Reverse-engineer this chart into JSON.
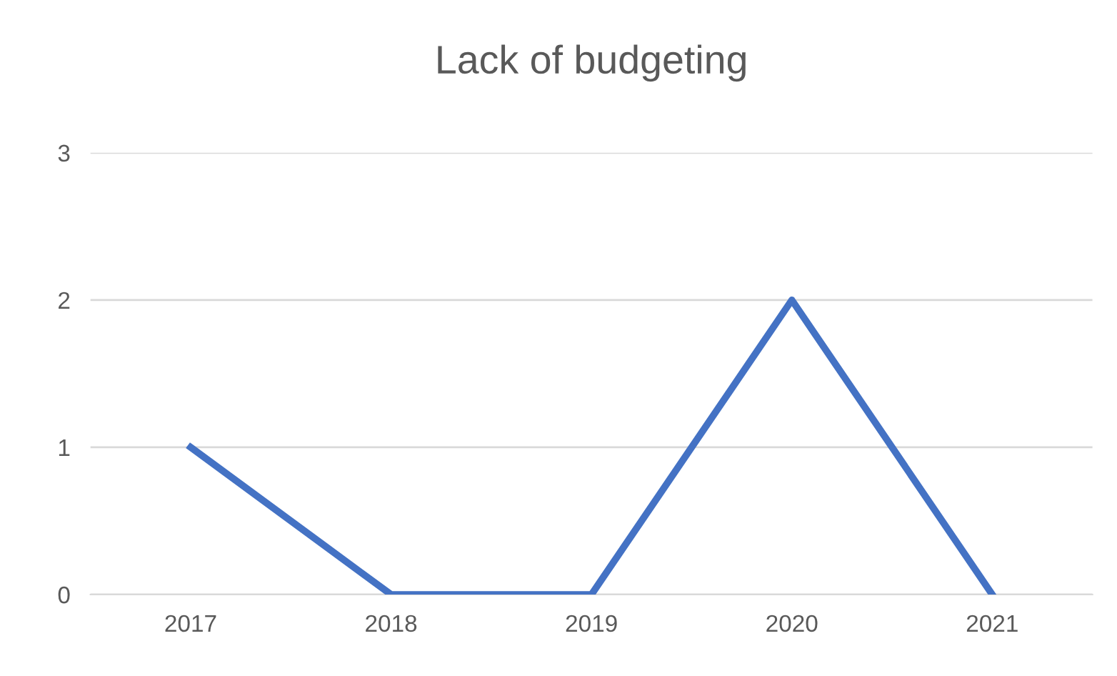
{
  "chart_data": {
    "type": "line",
    "title": "Lack of budgeting",
    "categories": [
      "2017",
      "2018",
      "2019",
      "2020",
      "2021"
    ],
    "series": [
      {
        "color": "#4472c4",
        "values": [
          1,
          0,
          0,
          2,
          0
        ]
      }
    ],
    "ylim": [
      0,
      3
    ],
    "yticks": [
      0,
      1,
      2,
      3
    ],
    "grid": "y",
    "marker": "none",
    "line_style": "solid"
  }
}
